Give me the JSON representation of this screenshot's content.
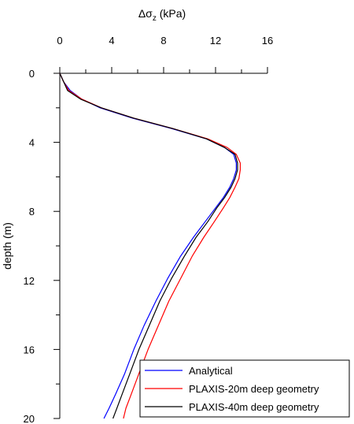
{
  "chart_data": {
    "type": "line",
    "title": "",
    "xlabel": "Δσ",
    "xlabel_sub": "z",
    "xlabel_unit": " (kPa)",
    "ylabel": "depth (m)",
    "x_axis_position": "top",
    "y_inverted": true,
    "xlim": [
      0,
      16
    ],
    "ylim": [
      0,
      20
    ],
    "x_ticks": [
      0,
      4,
      8,
      12,
      16
    ],
    "x_tick_labels": [
      "0",
      "4",
      "8",
      "12",
      "16"
    ],
    "x_minor_ticks": [
      2,
      6,
      10,
      14
    ],
    "y_ticks": [
      0,
      4,
      8,
      12,
      16,
      20
    ],
    "y_tick_labels": [
      "0",
      "4",
      "8",
      "12",
      "16",
      "20"
    ],
    "y_minor_ticks": [
      2,
      6,
      10,
      14,
      18
    ],
    "grid": false,
    "legend_position": "bottom-right",
    "series": [
      {
        "name": "Analytical",
        "color": "#0000ff",
        "points": [
          [
            0,
            0
          ],
          [
            0.3,
            0.5
          ],
          [
            0.8,
            1.0
          ],
          [
            1.7,
            1.5
          ],
          [
            3.1,
            2.0
          ],
          [
            5.6,
            2.6
          ],
          [
            8.6,
            3.2
          ],
          [
            11.3,
            3.8
          ],
          [
            12.7,
            4.3
          ],
          [
            13.4,
            4.7
          ],
          [
            13.6,
            5.2
          ],
          [
            13.6,
            5.6
          ],
          [
            13.4,
            6.1
          ],
          [
            13.1,
            6.6
          ],
          [
            12.6,
            7.2
          ],
          [
            12.0,
            7.8
          ],
          [
            11.2,
            8.6
          ],
          [
            10.3,
            9.5
          ],
          [
            9.3,
            10.6
          ],
          [
            8.3,
            11.9
          ],
          [
            7.4,
            13.2
          ],
          [
            6.5,
            14.6
          ],
          [
            5.7,
            16.0
          ],
          [
            5.0,
            17.4
          ],
          [
            4.3,
            18.6
          ],
          [
            3.8,
            19.4
          ],
          [
            3.4,
            20.0
          ]
        ]
      },
      {
        "name": "PLAXIS-20m deep geometry",
        "color": "#ff0000",
        "points": [
          [
            0,
            0
          ],
          [
            0.3,
            0.5
          ],
          [
            0.7,
            1.0
          ],
          [
            1.7,
            1.5
          ],
          [
            3.2,
            2.0
          ],
          [
            5.7,
            2.6
          ],
          [
            8.7,
            3.2
          ],
          [
            11.4,
            3.8
          ],
          [
            12.9,
            4.3
          ],
          [
            13.6,
            4.7
          ],
          [
            13.9,
            5.2
          ],
          [
            13.9,
            5.6
          ],
          [
            13.8,
            6.1
          ],
          [
            13.5,
            6.6
          ],
          [
            13.1,
            7.2
          ],
          [
            12.6,
            7.8
          ],
          [
            11.9,
            8.6
          ],
          [
            11.1,
            9.5
          ],
          [
            10.2,
            10.6
          ],
          [
            9.3,
            11.9
          ],
          [
            8.4,
            13.2
          ],
          [
            7.6,
            14.6
          ],
          [
            6.8,
            16.0
          ],
          [
            6.1,
            17.4
          ],
          [
            5.5,
            18.6
          ],
          [
            5.1,
            19.4
          ],
          [
            4.9,
            20.0
          ]
        ]
      },
      {
        "name": "PLAXIS-40m deep geometry",
        "color": "#000000",
        "points": [
          [
            0,
            0
          ],
          [
            0.3,
            0.5
          ],
          [
            0.6,
            1.0
          ],
          [
            1.6,
            1.5
          ],
          [
            3.2,
            2.0
          ],
          [
            5.7,
            2.6
          ],
          [
            8.7,
            3.2
          ],
          [
            11.3,
            3.8
          ],
          [
            12.7,
            4.3
          ],
          [
            13.5,
            4.7
          ],
          [
            13.7,
            5.2
          ],
          [
            13.7,
            5.6
          ],
          [
            13.5,
            6.1
          ],
          [
            13.2,
            6.6
          ],
          [
            12.7,
            7.2
          ],
          [
            12.1,
            7.8
          ],
          [
            11.4,
            8.6
          ],
          [
            10.5,
            9.5
          ],
          [
            9.6,
            10.6
          ],
          [
            8.6,
            11.9
          ],
          [
            7.7,
            13.2
          ],
          [
            6.9,
            14.6
          ],
          [
            6.1,
            16.0
          ],
          [
            5.4,
            17.4
          ],
          [
            4.8,
            18.6
          ],
          [
            4.4,
            19.4
          ],
          [
            4.1,
            20.0
          ]
        ]
      }
    ]
  }
}
